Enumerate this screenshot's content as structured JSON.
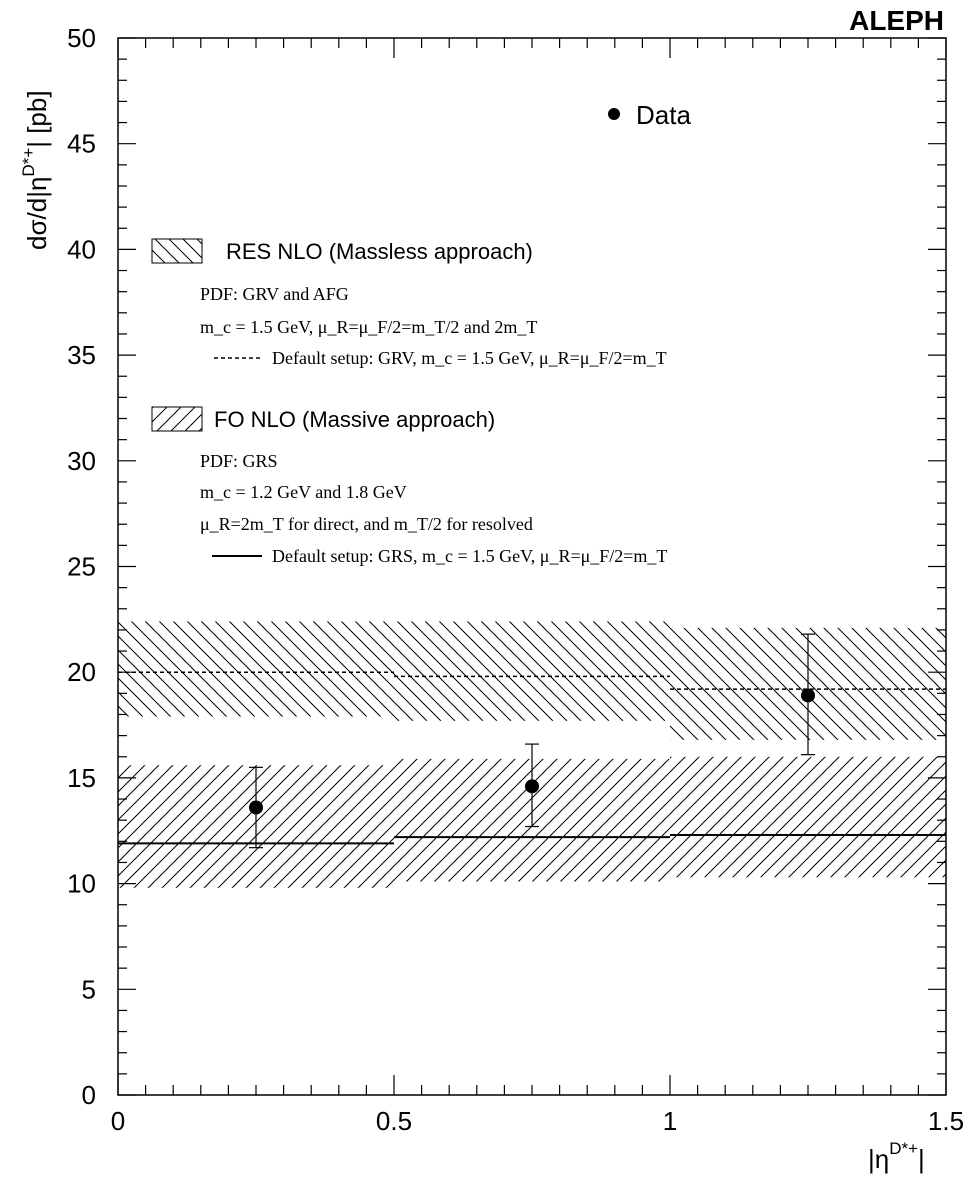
{
  "experiment_label": "ALEPH",
  "y_axis": {
    "label_main": "dσ/d|η",
    "label_sup": "D*+",
    "label_end": "| [pb]",
    "ticks": [
      "0",
      "5",
      "10",
      "15",
      "20",
      "25",
      "30",
      "35",
      "40",
      "45",
      "50"
    ]
  },
  "x_axis": {
    "label_main": "|η",
    "label_sup": "D*+",
    "label_end": "|",
    "ticks": [
      "0",
      "0.5",
      "1",
      "1.5"
    ]
  },
  "legend": {
    "data_label": "Data",
    "res_title": "RES NLO (Massless approach)",
    "res_pdf": "PDF: GRV and AFG",
    "res_mc_line": "m_c = 1.5 GeV, μ_R=μ_F/2=m_T/2 and 2m_T",
    "res_default": "Default setup: GRV, m_c = 1.5 GeV, μ_R=μ_F/2=m_T",
    "fo_title": "FO NLO (Massive approach)",
    "fo_pdf": "PDF: GRS",
    "fo_mc_line": "m_c = 1.2 GeV and 1.8 GeV",
    "fo_mu_line": "μ_R=2m_T for direct, and m_T/2 for resolved",
    "fo_default": "Default setup: GRS, m_c = 1.5 GeV, μ_R=μ_F/2=m_T"
  },
  "chart_data": {
    "type": "scatter",
    "xlabel": "|η^{D*+}|",
    "ylabel": "dσ/d|η^{D*+}| [pb]",
    "xlim": [
      0,
      1.5
    ],
    "ylim": [
      0,
      50
    ],
    "legend_position": "top-right",
    "series": [
      {
        "name": "Data",
        "kind": "points",
        "x": [
          0.25,
          0.75,
          1.25
        ],
        "y": [
          13.6,
          14.6,
          18.9
        ],
        "y_low": [
          11.7,
          12.7,
          16.1
        ],
        "y_high": [
          15.5,
          16.6,
          21.8
        ]
      },
      {
        "name": "RES NLO (Massless approach)",
        "kind": "band",
        "bins": [
          [
            0,
            0.5
          ],
          [
            0.5,
            1.0
          ],
          [
            1.0,
            1.5
          ]
        ],
        "low": [
          17.9,
          17.7,
          16.8
        ],
        "high": [
          22.4,
          22.4,
          22.1
        ],
        "default": [
          20.0,
          19.8,
          19.2
        ]
      },
      {
        "name": "FO NLO (Massive approach)",
        "kind": "band",
        "bins": [
          [
            0,
            0.5
          ],
          [
            0.5,
            1.0
          ],
          [
            1.0,
            1.5
          ]
        ],
        "low": [
          9.8,
          10.1,
          10.3
        ],
        "high": [
          15.6,
          15.9,
          16.0
        ],
        "default": [
          11.9,
          12.2,
          12.3
        ]
      }
    ]
  }
}
